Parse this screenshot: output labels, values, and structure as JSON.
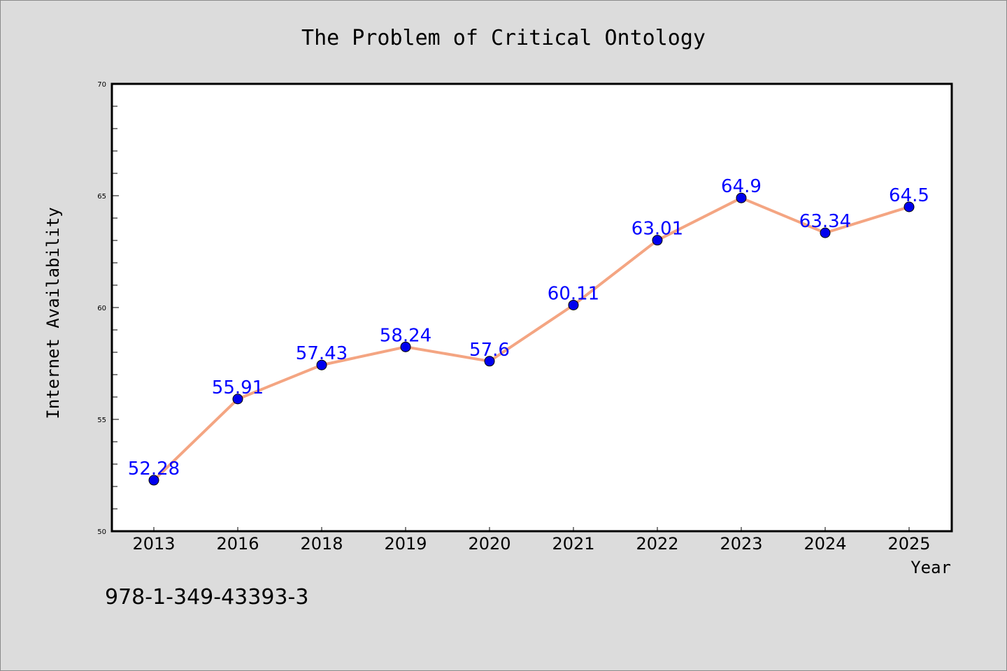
{
  "chart_data": {
    "type": "line",
    "title": "The Problem of Critical Ontology",
    "xlabel": "Year",
    "ylabel": "Internet Availability",
    "categories": [
      "2013",
      "2016",
      "2018",
      "2019",
      "2020",
      "2021",
      "2022",
      "2023",
      "2024",
      "2025"
    ],
    "series": [
      {
        "values": [
          52.28,
          55.91,
          57.43,
          58.24,
          57.6,
          60.11,
          63.01,
          64.9,
          63.34,
          64.5
        ],
        "data_labels": [
          "52.28",
          "55.91",
          "57.43",
          "58.24",
          "57.6",
          "60.11",
          "63.01",
          "64.9",
          "63.34",
          "64.5"
        ]
      }
    ],
    "ylim": [
      50,
      70
    ],
    "yticks": [
      "50",
      "55",
      "60",
      "65",
      "70"
    ],
    "grid": false,
    "legend": "none",
    "colors": {
      "line": "#f4a582",
      "marker": "#0000ee",
      "label": "#0000ff",
      "plot_bg": "#ffffff",
      "page_bg": "#dcdcdc"
    }
  },
  "footnote": "978-1-349-43393-3"
}
